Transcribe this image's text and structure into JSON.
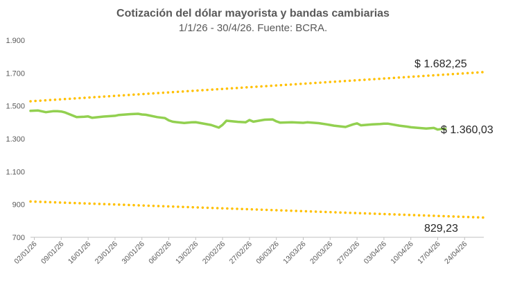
{
  "chart_data": {
    "type": "line",
    "title": "Cotización del dólar mayorista y bandas cambiarias",
    "subtitle": "1/1/26 - 30/4/26. Fuente: BCRA.",
    "xlabel": "",
    "ylabel": "",
    "ylim": [
      700,
      1900
    ],
    "y_ticks": [
      "700",
      "900",
      "1.100",
      "1.300",
      "1.500",
      "1.700",
      "1.900"
    ],
    "y_tick_values": [
      700,
      900,
      1100,
      1300,
      1500,
      1700,
      1900
    ],
    "x_tick_labels": [
      "02/01/26",
      "09/01/26",
      "16/01/26",
      "23/01/26",
      "30/01/26",
      "06/02/26",
      "13/02/26",
      "20/02/26",
      "27/02/26",
      "06/03/26",
      "13/03/26",
      "20/03/26",
      "27/03/26",
      "03/04/26",
      "10/04/26",
      "17/04/26",
      "24/04/26"
    ],
    "x_range_days": [
      1,
      119
    ],
    "grid": false,
    "legend": "none",
    "colors": {
      "dolar": "#92D050",
      "bands": "#FFC000",
      "axis": "#BFBFBF"
    },
    "series": [
      {
        "name": "Banda superior",
        "style": "dotted",
        "x_days": [
          1,
          119
        ],
        "values": [
          1528,
          1706
        ]
      },
      {
        "name": "Dólar mayorista",
        "style": "solid",
        "x_days": [
          1,
          3,
          5,
          7,
          8,
          9,
          10,
          13,
          15,
          16,
          17,
          20,
          22,
          23,
          24,
          27,
          29,
          30,
          31,
          34,
          36,
          37,
          38,
          41,
          43,
          44,
          48,
          50,
          51,
          52,
          55,
          57,
          58,
          59,
          62,
          64,
          65,
          66,
          69,
          71,
          72,
          73,
          76,
          78,
          79,
          80,
          83,
          85,
          86,
          87,
          90,
          92,
          93,
          94,
          97,
          99,
          100,
          101,
          104,
          106,
          107,
          108,
          109
        ],
        "values": [
          1470,
          1472,
          1462,
          1468,
          1468,
          1466,
          1460,
          1432,
          1434,
          1436,
          1428,
          1435,
          1438,
          1440,
          1445,
          1450,
          1452,
          1448,
          1446,
          1432,
          1426,
          1412,
          1404,
          1396,
          1400,
          1401,
          1384,
          1368,
          1385,
          1410,
          1403,
          1400,
          1414,
          1404,
          1416,
          1418,
          1406,
          1398,
          1400,
          1398,
          1397,
          1400,
          1395,
          1388,
          1384,
          1380,
          1372,
          1388,
          1394,
          1382,
          1388,
          1390,
          1392,
          1392,
          1380,
          1374,
          1370,
          1368,
          1362,
          1366,
          1356,
          1360,
          1360
        ]
      },
      {
        "name": "Banda inferior",
        "style": "dotted",
        "x_days": [
          1,
          119
        ],
        "values": [
          918,
          820
        ]
      }
    ],
    "annotations": [
      {
        "text": "$ 1.682,25",
        "target": "Banda superior"
      },
      {
        "text": "$ 1.360,03",
        "target": "Dólar mayorista"
      },
      {
        "text": "829,23",
        "target": "Banda inferior"
      }
    ]
  }
}
